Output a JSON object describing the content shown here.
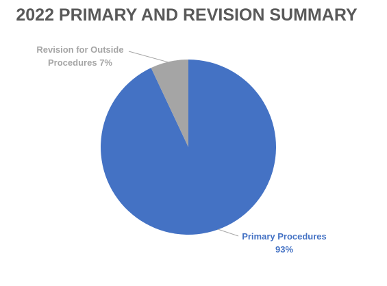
{
  "chart_data": {
    "type": "pie",
    "title": "2022 PRIMARY AND REVISION SUMMARY",
    "categories": [
      "Primary Procedures",
      "Revision for Outside Procedures"
    ],
    "values": [
      93,
      7
    ],
    "value_labels": [
      "93%",
      "7%"
    ],
    "colors": [
      "#4472c4",
      "#a5a5a5"
    ]
  }
}
